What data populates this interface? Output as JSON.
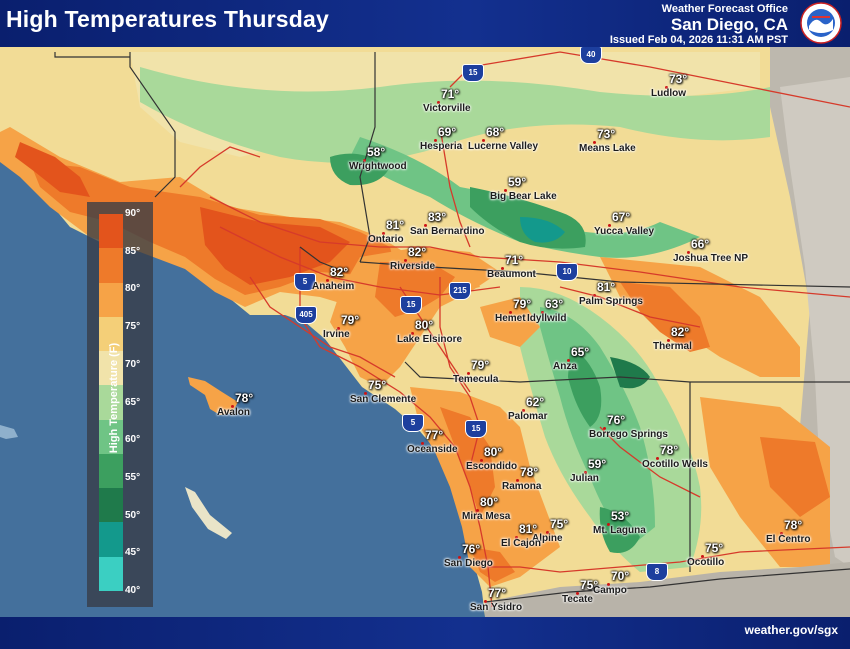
{
  "header": {
    "title": "High Temperatures Thursday",
    "office_line": "Weather Forecast Office",
    "office_name": "San Diego, CA",
    "issued": "Issued Feb 04, 2026 11:31 AM PST",
    "logo_icon": "nws-logo-icon"
  },
  "footer": {
    "website": "weather.gov/sgx"
  },
  "legend": {
    "title": "High Temperature (F)",
    "stops": [
      {
        "label": "90°",
        "color": "#e3541c"
      },
      {
        "label": "85°",
        "color": "#ee7a2a"
      },
      {
        "label": "80°",
        "color": "#f6a347"
      },
      {
        "label": "75°",
        "color": "#f4cf78"
      },
      {
        "label": "70°",
        "color": "#f1e3aa"
      },
      {
        "label": "65°",
        "color": "#a9d99a"
      },
      {
        "label": "60°",
        "color": "#6fc485"
      },
      {
        "label": "55°",
        "color": "#3c9f5f"
      },
      {
        "label": "50°",
        "color": "#1f7a4b"
      },
      {
        "label": "45°",
        "color": "#13998c"
      },
      {
        "label": "40°",
        "color": "#3bcfc2"
      }
    ]
  },
  "colors": {
    "ocean": "#44709c",
    "header_bg": "#13308f",
    "road": "#d63a2a",
    "boundary": "#333333"
  },
  "locations": [
    {
      "name": "Victorville",
      "temp": "71°"
    },
    {
      "name": "Hesperia",
      "temp": "69°"
    },
    {
      "name": "Lucerne Valley",
      "temp": "68°"
    },
    {
      "name": "Means Lake",
      "temp": "73°"
    },
    {
      "name": "Ludlow",
      "temp": "73°"
    },
    {
      "name": "Wrightwood",
      "temp": "58°"
    },
    {
      "name": "Big Bear Lake",
      "temp": "59°"
    },
    {
      "name": "Yucca Valley",
      "temp": "67°"
    },
    {
      "name": "Joshua Tree NP",
      "temp": "66°"
    },
    {
      "name": "Ontario",
      "temp": "81°"
    },
    {
      "name": "San Bernardino",
      "temp": "83°"
    },
    {
      "name": "Riverside",
      "temp": "82°"
    },
    {
      "name": "Anaheim",
      "temp": "82°"
    },
    {
      "name": "Beaumont",
      "temp": "71°"
    },
    {
      "name": "Palm Springs",
      "temp": "81°"
    },
    {
      "name": "Idyllwild",
      "temp": "63°"
    },
    {
      "name": "Hemet",
      "temp": "79°"
    },
    {
      "name": "Thermal",
      "temp": "82°"
    },
    {
      "name": "Irvine",
      "temp": "79°"
    },
    {
      "name": "Lake Elsinore",
      "temp": "80°"
    },
    {
      "name": "Anza",
      "temp": "65°"
    },
    {
      "name": "Temecula",
      "temp": "79°"
    },
    {
      "name": "San Clemente",
      "temp": "75°"
    },
    {
      "name": "Avalon",
      "temp": "78°"
    },
    {
      "name": "Palomar",
      "temp": "62°"
    },
    {
      "name": "Borrego Springs",
      "temp": "76°"
    },
    {
      "name": "Oceanside",
      "temp": "77°"
    },
    {
      "name": "Ocotillo Wells",
      "temp": "78°"
    },
    {
      "name": "Escondido",
      "temp": "80°"
    },
    {
      "name": "Ramona",
      "temp": "78°"
    },
    {
      "name": "Julian",
      "temp": "59°"
    },
    {
      "name": "Mira Mesa",
      "temp": "80°"
    },
    {
      "name": "El Centro",
      "temp": "78°"
    },
    {
      "name": "Alpine",
      "temp": "75°"
    },
    {
      "name": "El Cajon",
      "temp": "81°"
    },
    {
      "name": "Mt. Laguna",
      "temp": "53°"
    },
    {
      "name": "San Diego",
      "temp": "76°"
    },
    {
      "name": "Ocotillo",
      "temp": "75°"
    },
    {
      "name": "Campo",
      "temp": "70°"
    },
    {
      "name": "Tecate",
      "temp": "75°"
    },
    {
      "name": "San Ysidro",
      "temp": "77°"
    }
  ],
  "highway_shields": [
    "15",
    "40",
    "10",
    "5",
    "405",
    "215",
    "15",
    "5",
    "15",
    "8"
  ]
}
